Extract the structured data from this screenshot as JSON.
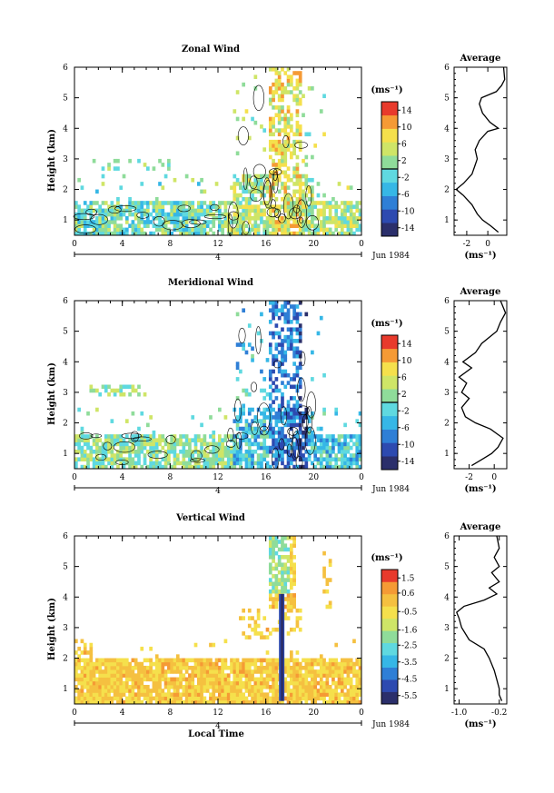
{
  "panels": [
    {
      "id": "zonal",
      "title": "Zonal Wind",
      "colorbar_unit": "(ms⁻¹)",
      "colorbar_ticks": [
        "14",
        "10",
        "6",
        "2",
        "-2",
        "-6",
        "-10",
        "-14"
      ],
      "colorbar_range": [
        -16,
        16
      ],
      "avg_title": "Average",
      "avg_xticks": [
        "-2",
        "0"
      ],
      "avg_xlim": [
        -3.2,
        1.8
      ],
      "avg_xtick_values": [
        -2,
        0
      ],
      "avg_unit": "(ms⁻¹)"
    },
    {
      "id": "meridional",
      "title": "Meridional Wind",
      "colorbar_unit": "(ms⁻¹)",
      "colorbar_ticks": [
        "14",
        "10",
        "6",
        "2",
        "-2",
        "-6",
        "-10",
        "-14"
      ],
      "colorbar_range": [
        -16,
        16
      ],
      "avg_title": "Average",
      "avg_xticks": [
        "-2",
        "0"
      ],
      "avg_xlim": [
        -3.2,
        1.0
      ],
      "avg_xtick_values": [
        -2,
        0
      ],
      "avg_unit": "(ms⁻¹)"
    },
    {
      "id": "vertical",
      "title": "Vertical Wind",
      "colorbar_unit": "(ms⁻¹)",
      "colorbar_ticks": [
        "1.5",
        "0.6",
        "-0.5",
        "-1.6",
        "-2.5",
        "-3.5",
        "-4.5",
        "-5.5"
      ],
      "colorbar_range": [
        -6.0,
        2.0
      ],
      "avg_title": "Average",
      "avg_xticks": [
        "-1.0",
        "-0.2"
      ],
      "avg_xlim": [
        -1.1,
        -0.05
      ],
      "avg_xtick_values": [
        -1.0,
        -0.2
      ],
      "avg_unit": "(ms⁻¹)"
    }
  ],
  "axes": {
    "ylabel": "Height (km)",
    "yticks": [
      "1",
      "2",
      "3",
      "4",
      "5",
      "6"
    ],
    "xticks": [
      "0",
      "4",
      "8",
      "12",
      "16",
      "20",
      "0"
    ],
    "date_marker": "4",
    "date_label": "Jun 1984",
    "xlabel": "Local Time"
  },
  "chart_data": [
    {
      "type": "heatmap",
      "title": "Zonal Wind",
      "ylabel": "Height (km)",
      "xlim": [
        0,
        24
      ],
      "ylim": [
        0.5,
        6
      ],
      "colorbar": {
        "label": "(ms⁻¹)",
        "ticks": [
          14,
          10,
          6,
          2,
          -2,
          -6,
          -10,
          -14
        ]
      },
      "average_profile": {
        "title": "Average",
        "xlabel": "(ms⁻¹)",
        "xlim": [
          -3.2,
          1.8
        ],
        "height": [
          0.6,
          0.8,
          1.0,
          1.2,
          1.5,
          1.8,
          2.0,
          2.2,
          2.5,
          2.8,
          3.0,
          3.3,
          3.6,
          3.9,
          4.0,
          4.2,
          4.5,
          4.8,
          5.0,
          5.2,
          5.4,
          5.6,
          6.0
        ],
        "value": [
          1.0,
          0.3,
          -0.5,
          -1.0,
          -1.5,
          -2.3,
          -3.0,
          -2.3,
          -1.5,
          -1.2,
          -1.0,
          -1.2,
          -0.8,
          0.0,
          1.0,
          0.2,
          -0.5,
          -0.8,
          -0.6,
          0.8,
          1.3,
          1.6,
          1.5
        ]
      }
    },
    {
      "type": "heatmap",
      "title": "Meridional Wind",
      "ylabel": "Height (km)",
      "xlim": [
        0,
        24
      ],
      "ylim": [
        0.5,
        6
      ],
      "colorbar": {
        "label": "(ms⁻¹)",
        "ticks": [
          14,
          10,
          6,
          2,
          -2,
          -6,
          -10,
          -14
        ]
      },
      "average_profile": {
        "title": "Average",
        "xlabel": "(ms⁻¹)",
        "xlim": [
          -3.2,
          1.0
        ],
        "height": [
          0.6,
          0.8,
          1.0,
          1.2,
          1.5,
          1.8,
          2.0,
          2.2,
          2.5,
          2.8,
          3.0,
          3.3,
          3.5,
          3.8,
          4.0,
          4.3,
          4.6,
          5.0,
          5.3,
          5.6,
          6.0
        ],
        "value": [
          -1.8,
          -1.0,
          -0.2,
          0.3,
          0.7,
          -0.3,
          -1.5,
          -2.3,
          -2.6,
          -2.0,
          -2.6,
          -2.2,
          -2.8,
          -1.8,
          -2.5,
          -1.5,
          -1.0,
          0.2,
          0.5,
          0.9,
          0.5
        ]
      }
    },
    {
      "type": "heatmap",
      "title": "Vertical Wind",
      "ylabel": "Height (km)",
      "xlabel": "Local Time",
      "xlim": [
        0,
        24
      ],
      "ylim": [
        0.5,
        6
      ],
      "colorbar": {
        "label": "(ms⁻¹)",
        "ticks": [
          1.5,
          0.6,
          -0.5,
          -1.6,
          -2.5,
          -3.5,
          -4.5,
          -5.5
        ]
      },
      "average_profile": {
        "title": "Average",
        "xlabel": "(ms⁻¹)",
        "xlim": [
          -1.1,
          -0.05
        ],
        "height": [
          0.6,
          0.8,
          1.0,
          1.3,
          1.6,
          2.0,
          2.3,
          2.6,
          3.0,
          3.3,
          3.5,
          3.7,
          3.9,
          4.1,
          4.3,
          4.5,
          4.8,
          5.0,
          5.3,
          5.6,
          6.0
        ],
        "value": [
          -0.15,
          -0.2,
          -0.2,
          -0.25,
          -0.3,
          -0.4,
          -0.5,
          -0.8,
          -0.95,
          -1.0,
          -1.05,
          -0.9,
          -0.5,
          -0.25,
          -0.4,
          -0.2,
          -0.35,
          -0.2,
          -0.3,
          -0.2,
          -0.25
        ]
      }
    }
  ]
}
